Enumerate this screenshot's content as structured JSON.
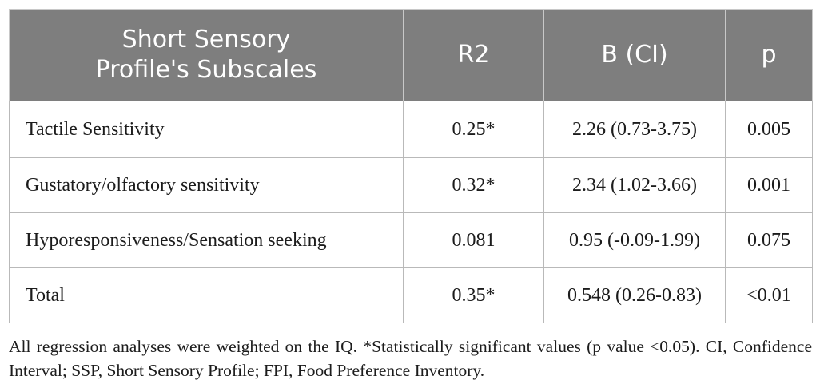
{
  "table": {
    "headers": [
      "Short Sensory\nProfile's Subscales",
      "R2",
      "B (CI)",
      "p"
    ],
    "rows": [
      [
        "Tactile Sensitivity",
        "0.25*",
        "2.26 (0.73-3.75)",
        "0.005"
      ],
      [
        "Gustatory/olfactory sensitivity",
        "0.32*",
        "2.34 (1.02-3.66)",
        "0.001"
      ],
      [
        "Hyporesponsiveness/Sensation seeking",
        "0.081",
        "0.95 (-0.09-1.99)",
        "0.075"
      ],
      [
        "Total",
        "0.35*",
        "0.548 (0.26-0.83)",
        "<0.01"
      ]
    ]
  },
  "footnote": "All regression analyses were weighted on the IQ. *Statistically significant values (p value <0.05). CI, Confidence Interval; SSP, Short Sensory Profile; FPI, Food Preference Inventory.",
  "colors": {
    "header_bg": "#7e7e7e",
    "header_text": "#ffffff",
    "border": "#b9b9b9",
    "body_text": "#1c1c1c"
  }
}
